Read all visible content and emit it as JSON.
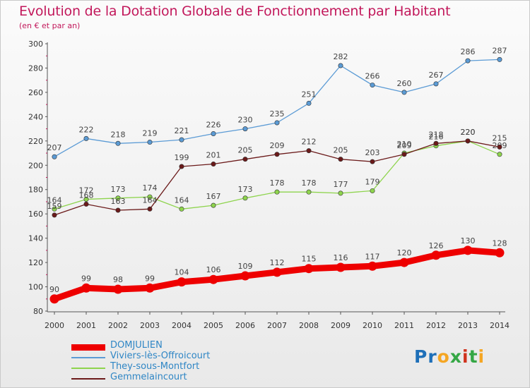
{
  "header": {
    "title": "Evolution de la Dotation Globale de Fonctionnement par Habitant",
    "subtitle": "(en € et par an)"
  },
  "logo": {
    "text": "Proxiti",
    "colors": [
      "#1e6fb8",
      "#f5a623",
      "#35a745",
      "#d0331d"
    ]
  },
  "chart_data": {
    "type": "line",
    "title": "Evolution de la Dotation Globale de Fonctionnement par Habitant",
    "subtitle": "(en € et par an)",
    "xlabel": "",
    "ylabel": "",
    "x": [
      2000,
      2001,
      2002,
      2003,
      2004,
      2005,
      2006,
      2007,
      2008,
      2009,
      2010,
      2011,
      2012,
      2013,
      2014
    ],
    "yticks": [
      80,
      100,
      120,
      140,
      160,
      180,
      200,
      220,
      240,
      260,
      280,
      300
    ],
    "ylim": [
      80,
      300
    ],
    "grid": false,
    "legend_position": "bottom-left",
    "series": [
      {
        "name": "DOMJULIEN",
        "color": "#ee0000",
        "emphasis": true,
        "values": [
          90,
          99,
          98,
          99,
          104,
          106,
          109,
          112,
          115,
          116,
          117,
          120,
          126,
          130,
          128
        ]
      },
      {
        "name": "Viviers-lès-Offroicourt",
        "color": "#5b9bd5",
        "emphasis": false,
        "values": [
          207,
          222,
          218,
          219,
          221,
          226,
          230,
          235,
          251,
          282,
          266,
          260,
          267,
          286,
          287
        ]
      },
      {
        "name": "They-sous-Montfort",
        "color": "#8ed44d",
        "emphasis": false,
        "values": [
          164,
          172,
          173,
          174,
          164,
          167,
          173,
          178,
          178,
          177,
          179,
          210,
          216,
          220,
          209
        ]
      },
      {
        "name": "Gemmelaincourt",
        "color": "#6b1a1a",
        "emphasis": false,
        "values": [
          159,
          168,
          163,
          164,
          199,
          201,
          205,
          209,
          212,
          205,
          203,
          209,
          218,
          220,
          215
        ]
      }
    ]
  }
}
